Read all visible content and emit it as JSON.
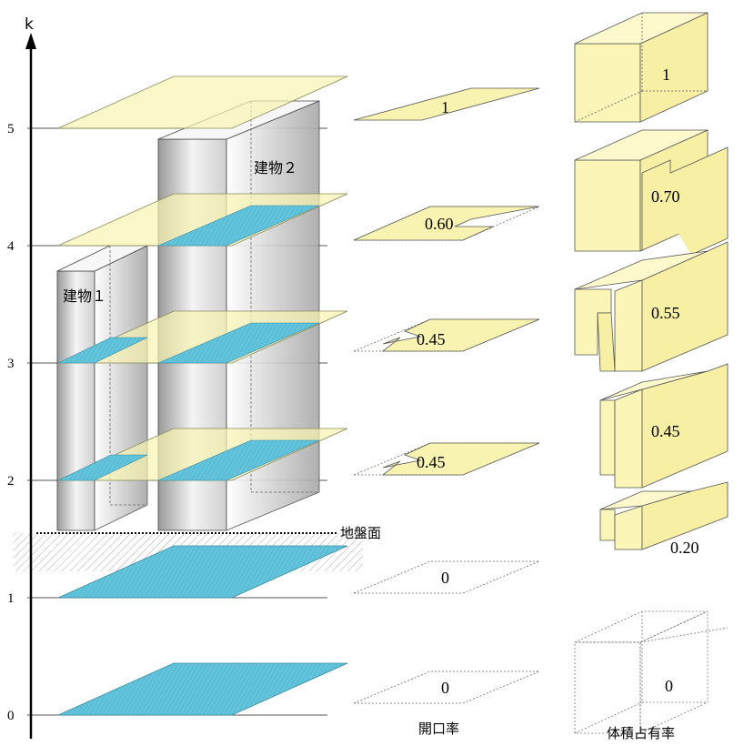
{
  "axis": {
    "label": "k",
    "ticks": [
      "0",
      "1",
      "2",
      "3",
      "4",
      "5"
    ]
  },
  "buildings": {
    "building1": "建物１",
    "building2": "建物２"
  },
  "ground_label": "地盤面",
  "opening_rate": {
    "caption": "開口率",
    "values": [
      "0",
      "0",
      "0.45",
      "0.45",
      "0.60",
      "1"
    ]
  },
  "volume_ratio": {
    "caption": "体積占有率",
    "values": [
      "0",
      "0.20",
      "0.45",
      "0.55",
      "0.70",
      "1"
    ]
  },
  "colors": {
    "plane_fill": "#f8f3b0",
    "plane_edge": "#8a8a5a",
    "water_fill": "#5bbfd8",
    "building_light": "#eeeeee",
    "building_dark": "#9b9b9b",
    "box_fill": "#fbf6b8"
  }
}
